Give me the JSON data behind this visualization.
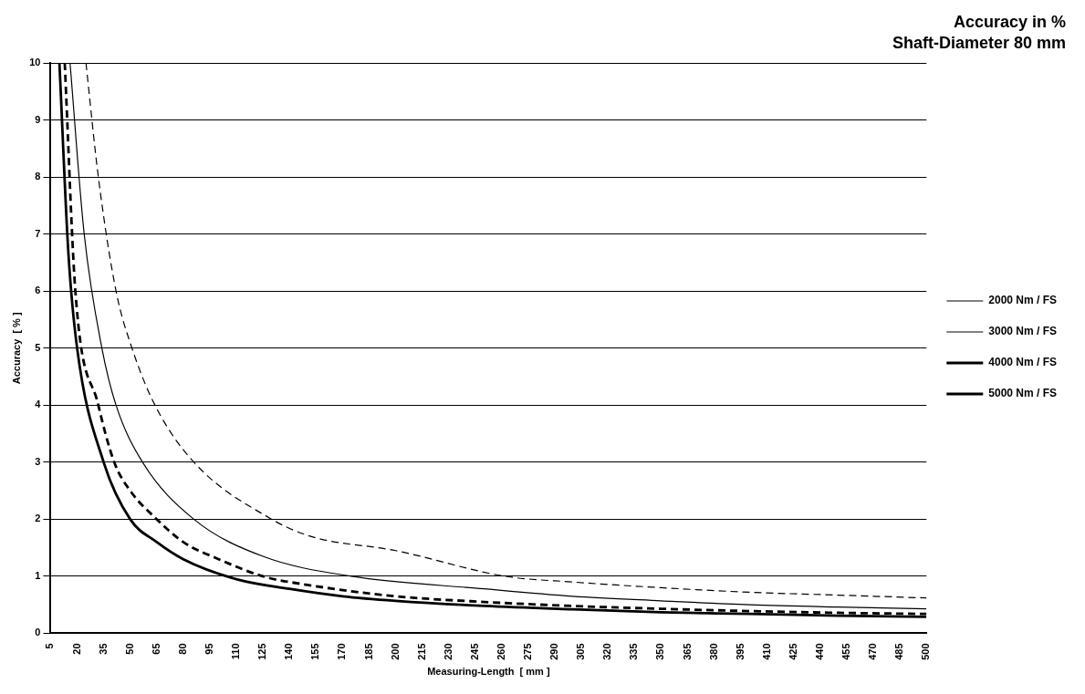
{
  "chart_data": {
    "type": "line",
    "title": "Accuracy in %",
    "subtitle": "Shaft-Diameter 80 mm",
    "xlabel": "Measuring-Length  [ mm ]",
    "ylabel": "Accuracy  [ % ]",
    "xlim": [
      5,
      500
    ],
    "xticks": [
      5,
      20,
      35,
      50,
      65,
      80,
      95,
      110,
      125,
      140,
      155,
      170,
      185,
      200,
      215,
      230,
      245,
      260,
      275,
      290,
      305,
      320,
      335,
      350,
      365,
      380,
      395,
      410,
      425,
      440,
      455,
      470,
      485,
      500
    ],
    "ylim": [
      0,
      10
    ],
    "yticks": [
      0,
      1,
      2,
      3,
      4,
      5,
      6,
      7,
      8,
      9,
      10
    ],
    "grid": "y",
    "legend": "right",
    "marker": "none",
    "series": [
      {
        "name": "2000 Nm / FS",
        "color": "#000000",
        "line_style": "dashed",
        "x": [
          25,
          32,
          42,
          51,
          64,
          86,
          130,
          152,
          200,
          262,
          300,
          350,
          400,
          450,
          500
        ],
        "values": [
          10,
          8,
          6,
          5,
          4,
          3,
          2,
          1.7,
          1.45,
          1,
          0.9,
          0.8,
          0.72,
          0.67,
          0.62
        ]
      },
      {
        "name": "3000 Nm / FS",
        "color": "#000000",
        "line_style": "solid",
        "x": [
          16,
          24,
          34,
          42,
          57,
          86,
          125,
          175,
          250,
          300,
          350,
          400,
          450,
          500
        ],
        "values": [
          10,
          7,
          5,
          4,
          3,
          2,
          1.35,
          1,
          0.78,
          0.65,
          0.57,
          0.5,
          0.46,
          0.43
        ]
      },
      {
        "name": "4000 Nm / FS",
        "color": "#000000",
        "line_style": "dashed",
        "x": [
          13,
          19,
          32,
          41,
          50,
          65,
          80,
          100,
          125,
          150,
          200,
          250,
          300,
          350,
          400,
          450,
          500
        ],
        "values": [
          10,
          6,
          4,
          3,
          2.5,
          2,
          1.6,
          1.3,
          1,
          0.85,
          0.65,
          0.55,
          0.48,
          0.43,
          0.39,
          0.36,
          0.34
        ]
      },
      {
        "name": "5000 Nm / FS",
        "color": "#000000",
        "line_style": "solid",
        "x": [
          10,
          15,
          20,
          35,
          50,
          65,
          80,
          110,
          140,
          170,
          200,
          250,
          300,
          350,
          400,
          450,
          500
        ],
        "values": [
          10,
          6.7,
          5,
          3,
          2,
          1.6,
          1.3,
          0.95,
          0.78,
          0.65,
          0.57,
          0.48,
          0.42,
          0.37,
          0.34,
          0.31,
          0.29
        ]
      }
    ]
  }
}
